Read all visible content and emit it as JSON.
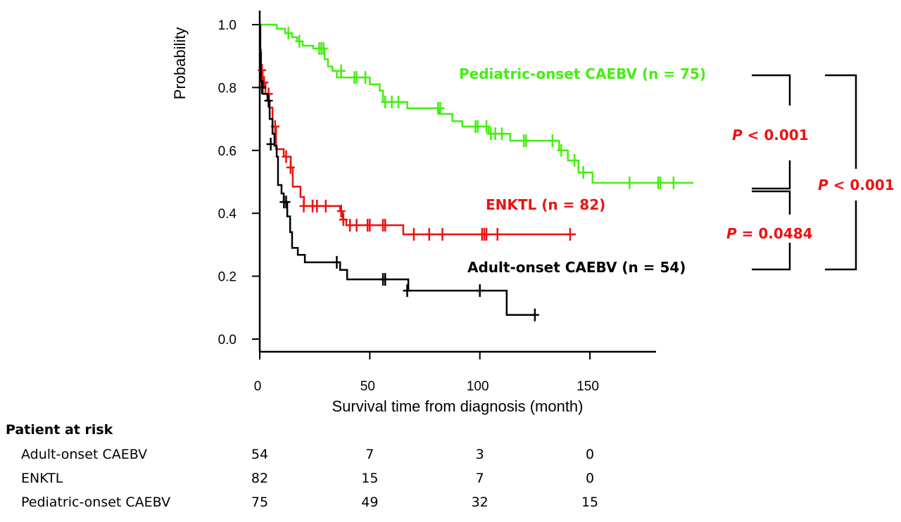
{
  "chart_data": {
    "type": "line",
    "subtype": "kaplan-meier step",
    "xlabel": "Survival time from diagnosis (month)",
    "ylabel": "Probability",
    "xlim": [
      0,
      180
    ],
    "ylim": [
      0,
      1.0
    ],
    "xticks": [
      0,
      50,
      100,
      150
    ],
    "yticks": [
      0.0,
      0.2,
      0.4,
      0.6,
      0.8,
      1.0
    ],
    "ytick_labels": [
      "0.0",
      "0.2",
      "0.4",
      "0.6",
      "0.8",
      "1.0"
    ],
    "grid": false,
    "series": [
      {
        "name": "Pediatric-onset CAEBV (n = 75)",
        "color": "#44ee11",
        "steps": [
          [
            0,
            1.0
          ],
          [
            7.7,
            0.987
          ],
          [
            11.5,
            0.973
          ],
          [
            14.7,
            0.96
          ],
          [
            17,
            0.947
          ],
          [
            19.5,
            0.933
          ],
          [
            24.3,
            0.924
          ],
          [
            29.5,
            0.89
          ],
          [
            31,
            0.867
          ],
          [
            33,
            0.853
          ],
          [
            35,
            0.832
          ],
          [
            50,
            0.81
          ],
          [
            54.5,
            0.79
          ],
          [
            56,
            0.754
          ],
          [
            67,
            0.734
          ],
          [
            81.5,
            0.716
          ],
          [
            87.5,
            0.693
          ],
          [
            92,
            0.676
          ],
          [
            104,
            0.653
          ],
          [
            113.8,
            0.631
          ],
          [
            136,
            0.6
          ],
          [
            140,
            0.568
          ],
          [
            144.8,
            0.53
          ],
          [
            151.2,
            0.497
          ],
          [
            197,
            0.497
          ]
        ],
        "censored": [
          [
            13,
            0.973
          ],
          [
            18,
            0.947
          ],
          [
            27,
            0.924
          ],
          [
            28,
            0.924
          ],
          [
            29,
            0.924
          ],
          [
            37,
            0.853
          ],
          [
            43,
            0.832
          ],
          [
            44,
            0.832
          ],
          [
            48,
            0.832
          ],
          [
            57,
            0.754
          ],
          [
            60,
            0.754
          ],
          [
            63,
            0.754
          ],
          [
            81,
            0.734
          ],
          [
            82,
            0.734
          ],
          [
            98,
            0.676
          ],
          [
            99,
            0.676
          ],
          [
            103,
            0.676
          ],
          [
            105,
            0.653
          ],
          [
            107,
            0.653
          ],
          [
            110,
            0.653
          ],
          [
            120,
            0.631
          ],
          [
            121,
            0.631
          ],
          [
            133,
            0.631
          ],
          [
            137,
            0.6
          ],
          [
            143,
            0.568
          ],
          [
            147,
            0.53
          ],
          [
            168,
            0.497
          ],
          [
            181,
            0.497
          ],
          [
            182,
            0.497
          ],
          [
            188,
            0.497
          ]
        ]
      },
      {
        "name": "ENKTL (n = 82)",
        "color": "#ee1111",
        "steps": [
          [
            0,
            1.0
          ],
          [
            0.3,
            0.92
          ],
          [
            0.6,
            0.855
          ],
          [
            1.3,
            0.816
          ],
          [
            2.6,
            0.78
          ],
          [
            4.2,
            0.736
          ],
          [
            5.8,
            0.676
          ],
          [
            7.4,
            0.604
          ],
          [
            10.9,
            0.58
          ],
          [
            14.1,
            0.546
          ],
          [
            15,
            0.485
          ],
          [
            18.5,
            0.452
          ],
          [
            20.1,
            0.423
          ],
          [
            36.5,
            0.407
          ],
          [
            37.7,
            0.38
          ],
          [
            39.3,
            0.362
          ],
          [
            65.2,
            0.333
          ],
          [
            143.6,
            0.333
          ]
        ],
        "censored": [
          [
            1,
            0.855
          ],
          [
            2,
            0.816
          ],
          [
            4,
            0.78
          ],
          [
            7,
            0.676
          ],
          [
            12,
            0.58
          ],
          [
            14,
            0.546
          ],
          [
            20,
            0.423
          ],
          [
            24,
            0.423
          ],
          [
            26,
            0.423
          ],
          [
            30,
            0.423
          ],
          [
            37,
            0.407
          ],
          [
            38,
            0.38
          ],
          [
            41,
            0.362
          ],
          [
            44,
            0.362
          ],
          [
            49,
            0.362
          ],
          [
            50,
            0.362
          ],
          [
            56,
            0.362
          ],
          [
            57,
            0.362
          ],
          [
            70,
            0.333
          ],
          [
            77,
            0.333
          ],
          [
            83,
            0.333
          ],
          [
            101,
            0.333
          ],
          [
            102,
            0.333
          ],
          [
            103,
            0.333
          ],
          [
            108,
            0.333
          ],
          [
            141,
            0.333
          ]
        ]
      },
      {
        "name": "Adult-onset CAEBV (n = 54)",
        "color": "#000000",
        "steps": [
          [
            0,
            1.0
          ],
          [
            0.2,
            0.91
          ],
          [
            0.5,
            0.82
          ],
          [
            1.3,
            0.78
          ],
          [
            3.5,
            0.758
          ],
          [
            4.5,
            0.7
          ],
          [
            5.8,
            0.653
          ],
          [
            6.7,
            0.615
          ],
          [
            7.7,
            0.58
          ],
          [
            8.3,
            0.49
          ],
          [
            9.9,
            0.463
          ],
          [
            10.9,
            0.436
          ],
          [
            12.5,
            0.39
          ],
          [
            13.8,
            0.34
          ],
          [
            14.7,
            0.29
          ],
          [
            17.3,
            0.268
          ],
          [
            20.5,
            0.244
          ],
          [
            36.5,
            0.22
          ],
          [
            39.7,
            0.19
          ],
          [
            67.5,
            0.154
          ],
          [
            112.2,
            0.077
          ],
          [
            125,
            0.077
          ]
        ],
        "censored": [
          [
            1,
            0.8
          ],
          [
            4,
            0.758
          ],
          [
            5,
            0.62
          ],
          [
            11,
            0.436
          ],
          [
            12,
            0.436
          ],
          [
            35,
            0.244
          ],
          [
            56,
            0.19
          ],
          [
            57,
            0.19
          ],
          [
            67,
            0.154
          ],
          [
            100,
            0.154
          ],
          [
            125,
            0.077
          ]
        ]
      }
    ],
    "annotations": {
      "label_pediatric": "Pediatric-onset CAEBV (n = 75)",
      "label_enktl": "ENKTL (n = 82)",
      "label_adult": "Adult-onset CAEBV (n = 54)",
      "p_ped_enktl": "< 0.001",
      "p_enktl_adult": "= 0.0484",
      "p_ped_adult": "< 0.001",
      "p_letter": "P",
      "p_color": "#ee1111"
    },
    "risk_table": {
      "title": "Patient at risk",
      "rows": [
        {
          "label": "Adult-onset CAEBV",
          "values": [
            "54",
            "7",
            "3",
            "0"
          ]
        },
        {
          "label": "ENKTL",
          "values": [
            "82",
            "15",
            "7",
            "0"
          ]
        },
        {
          "label": "Pediatric-onset CAEBV",
          "values": [
            "75",
            "49",
            "32",
            "15"
          ]
        }
      ]
    }
  }
}
